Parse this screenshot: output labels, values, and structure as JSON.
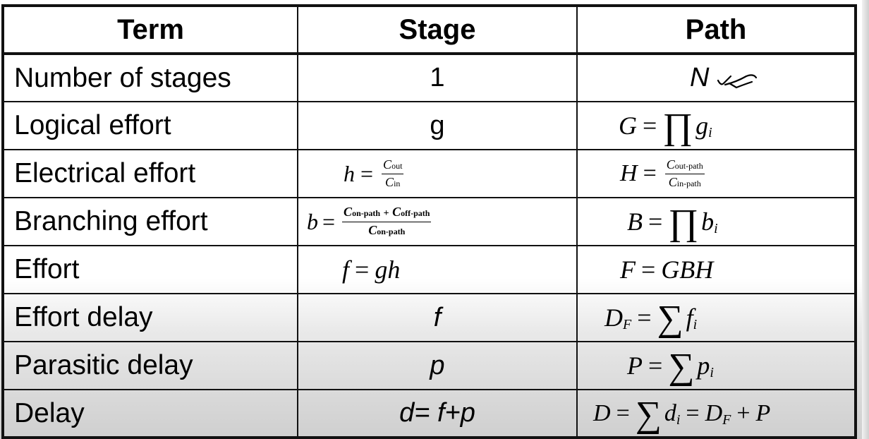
{
  "table": {
    "headers": [
      "Term",
      "Stage",
      "Path"
    ],
    "rows": [
      {
        "term": "Number of stages",
        "stage": "1",
        "path": {
          "text": "N"
        }
      },
      {
        "term": "Logical effort",
        "stage": "g",
        "path": {
          "lhs": "G",
          "eq": "=",
          "op": "∏",
          "var": "g",
          "sub": "i"
        }
      },
      {
        "term": "Electrical effort",
        "stage": {
          "lhs": "h",
          "eq": "=",
          "num": "C",
          "num_sub": "out",
          "den": "C",
          "den_sub": "in"
        },
        "path": {
          "lhs": "H",
          "eq": "=",
          "num": "C",
          "num_sub": "out-path",
          "den": "C",
          "den_sub": "in-path"
        }
      },
      {
        "term": "Branching effort",
        "stage": {
          "lhs": "b",
          "eq": "=",
          "num1": "C",
          "num1_sub": "on-path",
          "plus": "+",
          "num2": "C",
          "num2_sub": "off-path",
          "den": "C",
          "den_sub": "on-path"
        },
        "path": {
          "lhs": "B",
          "eq": "=",
          "op": "∏",
          "var": "b",
          "sub": "i"
        }
      },
      {
        "term": "Effort",
        "stage": {
          "lhs": "f",
          "eq": "=",
          "rhs": "gh"
        },
        "path": {
          "lhs": "F",
          "eq": "=",
          "rhs": "GBH"
        }
      },
      {
        "term": "Effort delay",
        "stage": "f",
        "path": {
          "lhs": "D",
          "lhs_sub": "F",
          "eq": "=",
          "op": "∑",
          "var": "f",
          "sub": "i"
        }
      },
      {
        "term": "Parasitic delay",
        "stage": "p",
        "path": {
          "lhs": "P",
          "eq": "=",
          "op": "∑",
          "var": "p",
          "sub": "i"
        }
      },
      {
        "term": "Delay",
        "stage": "d= f+p",
        "path": {
          "lhs": "D",
          "eq": "=",
          "op": "∑",
          "var": "d",
          "sub": "i",
          "eq2": "=",
          "t1": "D",
          "t1_sub": "F",
          "plus": "+",
          "t2": "P"
        }
      }
    ]
  }
}
